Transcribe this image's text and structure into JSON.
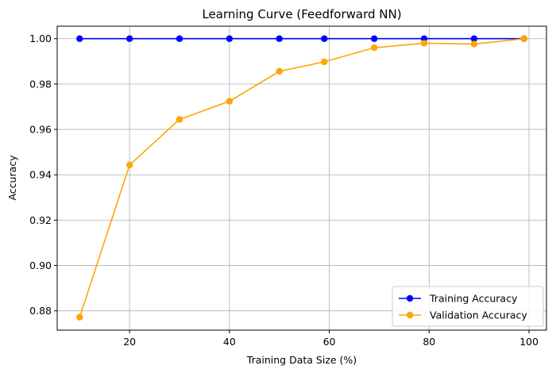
{
  "chart_data": {
    "type": "line",
    "title": "Learning Curve (Feedforward NN)",
    "xlabel": "Training Data Size (%)",
    "ylabel": "Accuracy",
    "xlim": [
      5.5,
      103.5
    ],
    "ylim": [
      0.8715,
      1.0055
    ],
    "x_ticks": [
      20,
      40,
      60,
      80,
      100
    ],
    "x_tick_labels": [
      "20",
      "40",
      "60",
      "80",
      "100"
    ],
    "y_ticks": [
      0.88,
      0.9,
      0.92,
      0.94,
      0.96,
      0.98,
      1.0
    ],
    "y_tick_labels": [
      "0.88",
      "0.90",
      "0.92",
      "0.94",
      "0.96",
      "0.98",
      "1.00"
    ],
    "grid": true,
    "legend_position": "lower-right",
    "x": [
      10,
      20,
      30,
      40,
      50,
      59,
      69,
      79,
      89,
      99
    ],
    "series": [
      {
        "name": "Training Accuracy",
        "color": "#0000ff",
        "marker": "circle",
        "values": [
          1.0,
          1.0,
          1.0,
          1.0,
          1.0,
          1.0,
          1.0,
          1.0,
          1.0,
          1.0
        ]
      },
      {
        "name": "Validation Accuracy",
        "color": "#ffa500",
        "marker": "circle",
        "values": [
          0.8772,
          0.9443,
          0.9644,
          0.9724,
          0.9856,
          0.9898,
          0.996,
          0.998,
          0.9976,
          1.0
        ]
      }
    ]
  }
}
